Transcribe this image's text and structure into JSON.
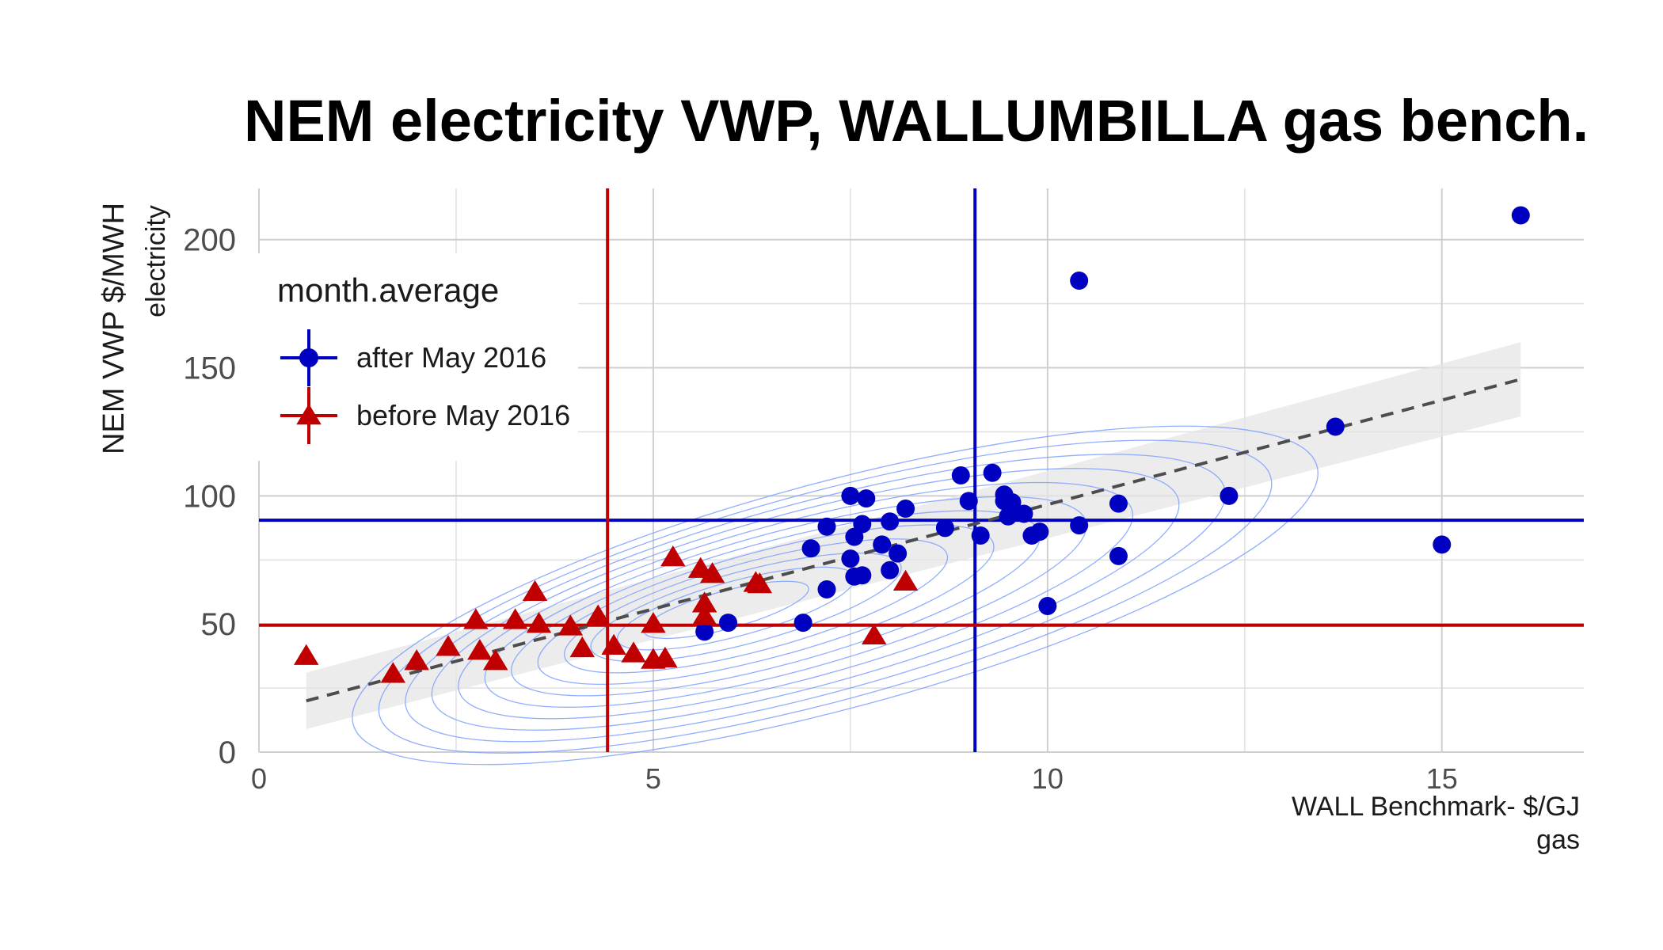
{
  "chart_data": {
    "type": "scatter",
    "title": "NEM electricity VWP, WALLUMBILLA gas bench.",
    "xlabel": "WALL Benchmark- $/GJ",
    "xlabel2": "gas",
    "ylabel": "NEM VWP  $/MWH",
    "ylabel2": "electricity",
    "xlim": [
      0,
      16.8
    ],
    "ylim": [
      0,
      220
    ],
    "x_ticks": [
      0,
      5,
      10,
      15
    ],
    "y_ticks": [
      0,
      50,
      100,
      150,
      200
    ],
    "grid": true,
    "legend": {
      "title": "month.average",
      "placement": "top-left"
    },
    "series": [
      {
        "name": "after May 2016",
        "color": "#0000c0",
        "marker": "circle",
        "mean_x": 9.08,
        "mean_y": 90.5,
        "points": [
          [
            5.65,
            47
          ],
          [
            5.95,
            50.5
          ],
          [
            6.9,
            50.5
          ],
          [
            7.0,
            79.5
          ],
          [
            7.2,
            88
          ],
          [
            7.2,
            63.5
          ],
          [
            7.5,
            100
          ],
          [
            7.7,
            99
          ],
          [
            7.55,
            84
          ],
          [
            7.65,
            89
          ],
          [
            7.5,
            75.5
          ],
          [
            7.55,
            68.5
          ],
          [
            7.65,
            69
          ],
          [
            7.9,
            81
          ],
          [
            8.0,
            90
          ],
          [
            8.1,
            77.5
          ],
          [
            8.2,
            95
          ],
          [
            8.0,
            71
          ],
          [
            8.7,
            87.5
          ],
          [
            8.9,
            108
          ],
          [
            9.0,
            98
          ],
          [
            9.15,
            84.5
          ],
          [
            9.3,
            109
          ],
          [
            9.45,
            100.5
          ],
          [
            9.5,
            92
          ],
          [
            9.55,
            97.5
          ],
          [
            9.7,
            93
          ],
          [
            9.8,
            84.5
          ],
          [
            9.9,
            86
          ],
          [
            9.45,
            98
          ],
          [
            10.0,
            57
          ],
          [
            10.4,
            88.5
          ],
          [
            10.4,
            184
          ],
          [
            10.9,
            97
          ],
          [
            10.9,
            76.5
          ],
          [
            12.3,
            100
          ],
          [
            13.65,
            127
          ],
          [
            15.0,
            81
          ],
          [
            16.0,
            209.5
          ]
        ]
      },
      {
        "name": "before May 2016",
        "color": "#c00000",
        "marker": "triangle",
        "mean_x": 4.42,
        "mean_y": 49.5,
        "points": [
          [
            0.6,
            37.5
          ],
          [
            1.7,
            30.5
          ],
          [
            2.0,
            35.5
          ],
          [
            2.4,
            41
          ],
          [
            2.75,
            51.5
          ],
          [
            2.8,
            39.5
          ],
          [
            3.0,
            35.5
          ],
          [
            3.25,
            51.5
          ],
          [
            3.5,
            62.5
          ],
          [
            3.55,
            50
          ],
          [
            3.95,
            49
          ],
          [
            4.1,
            40.5
          ],
          [
            4.3,
            53
          ],
          [
            4.5,
            41.5
          ],
          [
            4.75,
            38.5
          ],
          [
            5.0,
            50
          ],
          [
            5.0,
            36
          ],
          [
            5.15,
            36.5
          ],
          [
            5.25,
            76
          ],
          [
            5.6,
            71.5
          ],
          [
            5.65,
            58
          ],
          [
            5.65,
            53
          ],
          [
            5.75,
            69.5
          ],
          [
            6.3,
            66
          ],
          [
            6.35,
            65.5
          ],
          [
            7.8,
            45.5
          ],
          [
            8.2,
            66.5
          ]
        ]
      }
    ],
    "trend_line": {
      "style": "dashed",
      "color": "#4d4d4d",
      "x": [
        0.6,
        16.0
      ],
      "y": [
        20,
        145.5
      ],
      "ci_lower": [
        9,
        131
      ],
      "ci_upper": [
        31,
        160
      ]
    },
    "density_contours": {
      "color": "#7ea0ff",
      "center": [
        5.8,
        55
      ],
      "levels": 12
    }
  }
}
